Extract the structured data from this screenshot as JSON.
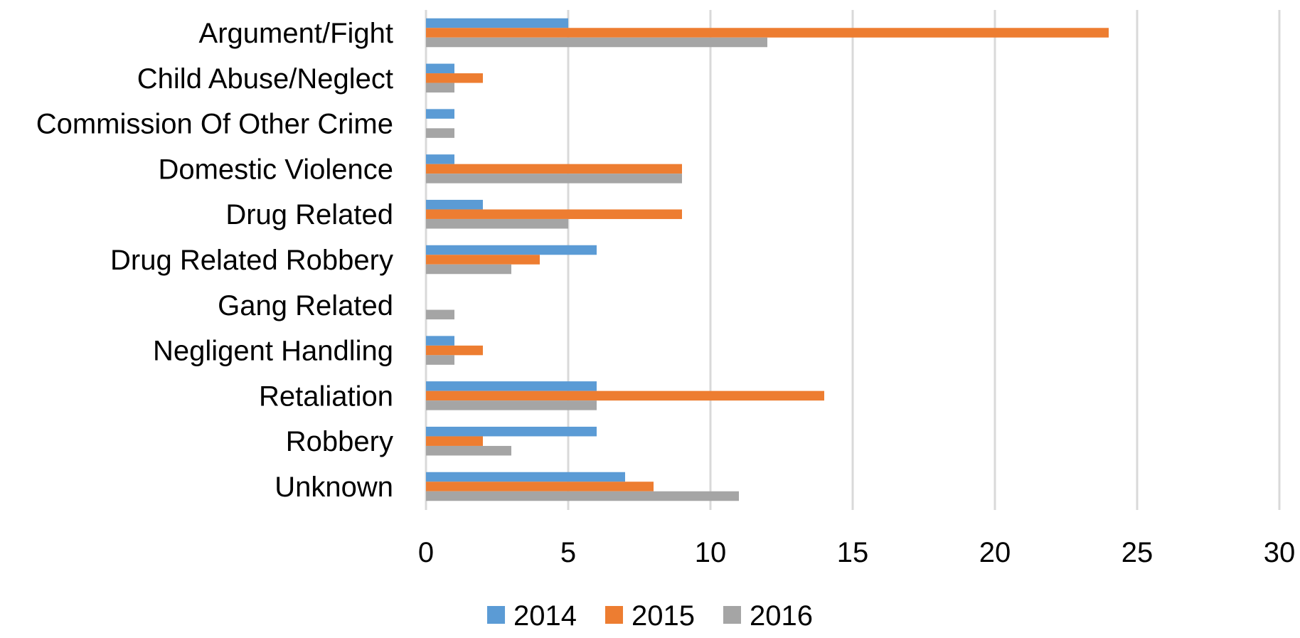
{
  "chart_data": {
    "type": "bar",
    "orientation": "horizontal",
    "categories": [
      "Argument/Fight",
      "Child Abuse/Neglect",
      "Commission Of Other Crime",
      "Domestic Violence",
      "Drug Related",
      "Drug Related Robbery",
      "Gang Related",
      "Negligent Handling",
      "Retaliation",
      "Robbery",
      "Unknown"
    ],
    "series": [
      {
        "name": "2014",
        "color": "#5b9bd5",
        "values": [
          5,
          1,
          1,
          1,
          2,
          6,
          0,
          1,
          6,
          6,
          7
        ]
      },
      {
        "name": "2015",
        "color": "#ed7d31",
        "values": [
          24,
          2,
          0,
          9,
          9,
          4,
          0,
          2,
          14,
          2,
          8
        ]
      },
      {
        "name": "2016",
        "color": "#a5a5a5",
        "values": [
          12,
          1,
          1,
          9,
          5,
          3,
          1,
          1,
          6,
          3,
          11
        ]
      }
    ],
    "xlim": [
      0,
      30
    ],
    "xticks": [
      "0",
      "5",
      "10",
      "15",
      "20",
      "25",
      "30"
    ],
    "title": "",
    "xlabel": "",
    "ylabel": "",
    "grid": "vertical",
    "legend": "bottom"
  }
}
